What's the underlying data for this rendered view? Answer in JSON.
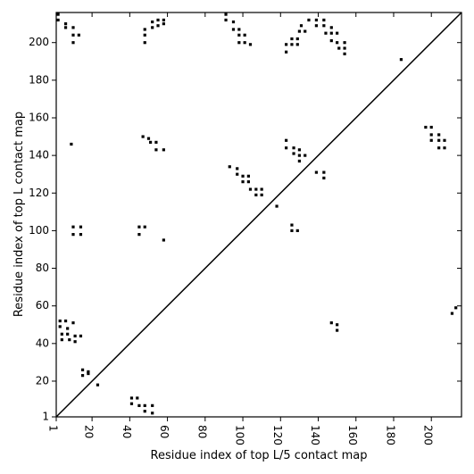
{
  "chart_data": {
    "type": "scatter",
    "xlabel": "Residue index of top L/5 contact map",
    "ylabel": "Residue index of top L contact map",
    "color": "#000000",
    "diagonal": true,
    "xlim": [
      1,
      216
    ],
    "ylim": [
      1,
      216
    ],
    "xticks": [
      1,
      20,
      40,
      60,
      80,
      100,
      120,
      140,
      160,
      180,
      200
    ],
    "yticks": [
      1,
      20,
      40,
      60,
      80,
      100,
      120,
      140,
      160,
      180,
      200
    ],
    "x": [
      2,
      2,
      6,
      6,
      10,
      10,
      10,
      13,
      9,
      3,
      3,
      4,
      6,
      7,
      7,
      8,
      10,
      11,
      11,
      14,
      4,
      15,
      15,
      18,
      18,
      23,
      10,
      10,
      14,
      14,
      41,
      44,
      41,
      45,
      48,
      48,
      52,
      52,
      45,
      48,
      45,
      58,
      47,
      50,
      51,
      54,
      54,
      58,
      48,
      48,
      48,
      52,
      52,
      55,
      55,
      58,
      58,
      91,
      91,
      95,
      95,
      98,
      98,
      98,
      101,
      101,
      104,
      93,
      97,
      97,
      100,
      100,
      103,
      103,
      104,
      107,
      107,
      110,
      110,
      118,
      123,
      123,
      127,
      127,
      130,
      130,
      133,
      130,
      126,
      126,
      129,
      139,
      143,
      143,
      147,
      150,
      150,
      123,
      123,
      126,
      126,
      129,
      129,
      130,
      133,
      131,
      135,
      139,
      139,
      143,
      143,
      144,
      147,
      147,
      147,
      150,
      150,
      151,
      154,
      154,
      154,
      184,
      197,
      200,
      200,
      200,
      204,
      204,
      204,
      207,
      207,
      211,
      213
    ],
    "values": [
      215,
      212,
      210,
      208,
      208,
      204,
      200,
      204,
      146,
      52,
      49,
      45,
      52,
      48,
      45,
      42,
      51,
      44,
      41,
      44,
      42,
      26,
      23,
      25,
      24,
      18,
      102,
      98,
      102,
      98,
      11,
      11,
      8,
      7,
      7,
      4,
      7,
      3,
      102,
      102,
      98,
      95,
      150,
      149,
      147,
      147,
      143,
      143,
      207,
      204,
      200,
      208,
      211,
      212,
      209,
      212,
      210,
      215,
      212,
      211,
      207,
      207,
      204,
      200,
      204,
      200,
      199,
      134,
      133,
      130,
      129,
      126,
      129,
      126,
      122,
      122,
      119,
      122,
      119,
      113,
      148,
      144,
      144,
      141,
      143,
      140,
      140,
      137,
      103,
      100,
      100,
      131,
      131,
      128,
      51,
      50,
      47,
      199,
      195,
      202,
      199,
      202,
      199,
      206,
      206,
      209,
      212,
      212,
      209,
      212,
      209,
      205,
      208,
      205,
      201,
      205,
      200,
      197,
      197,
      200,
      194,
      191,
      155,
      155,
      151,
      148,
      151,
      148,
      144,
      148,
      144,
      56,
      59
    ]
  }
}
